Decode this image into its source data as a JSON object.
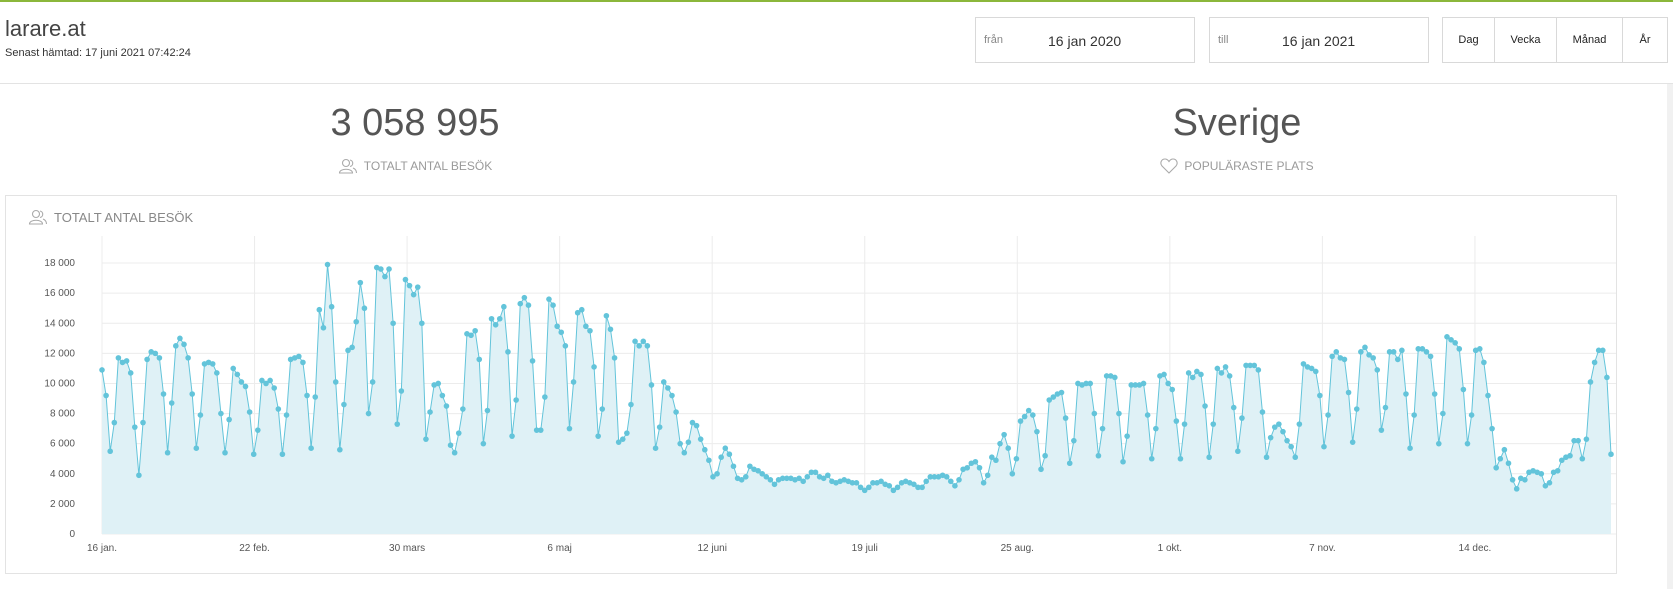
{
  "header": {
    "site_title": "larare.at",
    "last_fetched": "Senast hämtad: 17 juni 2021 07:42:24",
    "from_label": "från",
    "from_value": "16 jan 2020",
    "to_label": "till",
    "to_value": "16 jan 2021",
    "period_buttons": [
      "Dag",
      "Vecka",
      "Månad",
      "År"
    ]
  },
  "stats": {
    "total_visits_value": "3 058 995",
    "total_visits_label": "TOTALT ANTAL BESÖK",
    "popular_place_value": "Sverige",
    "popular_place_label": "POPULÄRASTE PLATS"
  },
  "panel": {
    "title": "TOTALT ANTAL BESÖK"
  },
  "colors": {
    "accent": "#8bb73b",
    "line": "#63c4da",
    "fill": "#dff1f6"
  },
  "chart_data": {
    "type": "area",
    "x_start": "2020-01-16",
    "x_end": "2021-01-16",
    "ylim": [
      0,
      19000
    ],
    "y_ticks": [
      0,
      2000,
      4000,
      6000,
      8000,
      10000,
      12000,
      14000,
      16000,
      18000
    ],
    "y_tick_labels": [
      "0",
      "2 000",
      "4 000",
      "6 000",
      "8 000",
      "10 000",
      "12 000",
      "14 000",
      "16 000",
      "18 000"
    ],
    "x_tick_labels": [
      "16 jan.",
      "22 feb.",
      "30 mars",
      "6 maj",
      "12 juni",
      "19 juli",
      "25 aug.",
      "1 okt.",
      "7 nov.",
      "14 dec."
    ],
    "x_tick_dates": [
      "2020-01-16",
      "2020-02-22",
      "2020-03-30",
      "2020-05-06",
      "2020-06-12",
      "2020-07-19",
      "2020-08-25",
      "2020-10-01",
      "2020-11-07",
      "2020-12-14"
    ],
    "grid": true,
    "legend": "none",
    "values": [
      10900,
      9200,
      5500,
      7400,
      11700,
      11400,
      11500,
      10700,
      7100,
      3900,
      7400,
      11600,
      12100,
      12000,
      11700,
      9300,
      5400,
      8700,
      12500,
      13000,
      12600,
      11700,
      9300,
      5700,
      7900,
      11300,
      11400,
      11300,
      10700,
      8000,
      5400,
      7600,
      11000,
      10600,
      10100,
      9800,
      8100,
      5300,
      6900,
      10200,
      10000,
      10200,
      9700,
      8300,
      5300,
      7900,
      11600,
      11700,
      11800,
      11400,
      9200,
      5700,
      9100,
      14900,
      13700,
      17900,
      15100,
      10100,
      5600,
      8600,
      12200,
      12400,
      14100,
      16700,
      15000,
      8000,
      10100,
      17700,
      17600,
      17100,
      17600,
      14000,
      7300,
      9500,
      16900,
      16500,
      15900,
      16400,
      14000,
      6300,
      8100,
      9900,
      10000,
      9200,
      8500,
      5900,
      5400,
      6700,
      8300,
      13300,
      13200,
      13500,
      11600,
      6000,
      8200,
      14300,
      13900,
      14300,
      15100,
      12100,
      6500,
      8900,
      15300,
      15700,
      15200,
      11500,
      6900,
      6900,
      9100,
      15600,
      15200,
      13800,
      13400,
      12500,
      7000,
      10100,
      14700,
      14900,
      13800,
      13500,
      11100,
      6500,
      8300,
      14500,
      13600,
      11700,
      6100,
      6300,
      6700,
      8600,
      12800,
      12500,
      12800,
      12500,
      9900,
      5700,
      7100,
      10100,
      9700,
      9200,
      8100,
      6000,
      5400,
      6100,
      7400,
      7200,
      6300,
      5600,
      4900,
      3800,
      4000,
      5100,
      5700,
      5300,
      4500,
      3700,
      3600,
      3800,
      4500,
      4300,
      4200,
      4000,
      3800,
      3600,
      3300,
      3600,
      3700,
      3700,
      3700,
      3600,
      3700,
      3500,
      3800,
      4100,
      4100,
      3800,
      3700,
      3900,
      3500,
      3400,
      3500,
      3600,
      3500,
      3400,
      3400,
      3100,
      2900,
      3100,
      3400,
      3400,
      3500,
      3300,
      3200,
      2900,
      3100,
      3400,
      3500,
      3400,
      3300,
      3100,
      3100,
      3500,
      3800,
      3800,
      3800,
      3900,
      3800,
      3500,
      3200,
      3600,
      4300,
      4400,
      4700,
      4800,
      4400,
      3400,
      3900,
      5100,
      4900,
      6000,
      6600,
      5700,
      4000,
      5000,
      7500,
      7800,
      8200,
      7900,
      6800,
      4300,
      5200,
      8900,
      9100,
      9300,
      9400,
      7700,
      4700,
      6200,
      10000,
      9900,
      10000,
      10000,
      8000,
      5200,
      7000,
      10500,
      10500,
      10400,
      8000,
      4800,
      6500,
      9900,
      9900,
      9900,
      10000,
      7900,
      5000,
      7000,
      10500,
      10600,
      10000,
      9600,
      7500,
      5000,
      7300,
      10700,
      10400,
      10800,
      10600,
      8500,
      5100,
      7300,
      11000,
      10700,
      11100,
      10500,
      8400,
      5500,
      7700,
      11200,
      11200,
      11200,
      10900,
      8100,
      5100,
      6400,
      7100,
      7300,
      6800,
      6200,
      5800,
      5100,
      7300,
      11300,
      11100,
      11000,
      10800,
      9200,
      5800,
      7900,
      11800,
      12100,
      11700,
      11600,
      9400,
      6100,
      8300,
      12100,
      12400,
      11900,
      11700,
      10900,
      6900,
      8400,
      12100,
      12100,
      11600,
      12200,
      9300,
      5700,
      7900,
      12300,
      12300,
      12100,
      11800,
      9300,
      6000,
      8000,
      13100,
      12900,
      12700,
      12300,
      9600,
      6000,
      7900,
      12200,
      12300,
      11400,
      9200,
      7000,
      4400,
      5000,
      5600,
      4700,
      3600,
      3000,
      3700,
      3600,
      4100,
      4200,
      4100,
      4000,
      3200,
      3400,
      4100,
      4200,
      4900,
      5100,
      5200,
      6200,
      6200,
      5000,
      6300,
      10100,
      11400,
      12200,
      12200,
      10400,
      5300
    ]
  }
}
